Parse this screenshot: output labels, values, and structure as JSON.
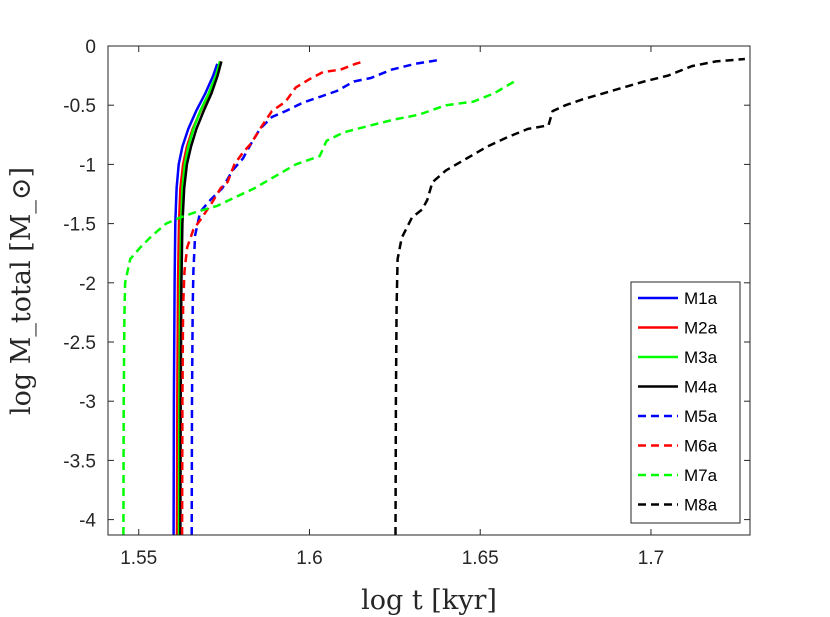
{
  "chart_data": {
    "type": "line",
    "title": "",
    "xlabel": "log t [kyr]",
    "ylabel": "log M_total [M_⊙]",
    "xlim": [
      1.541,
      1.729
    ],
    "ylim": [
      -4.13,
      0
    ],
    "xticks": [
      1.55,
      1.6,
      1.65,
      1.7
    ],
    "xtick_labels": [
      "1.55",
      "1.6",
      "1.65",
      "1.7"
    ],
    "yticks": [
      0,
      -0.5,
      -1,
      -1.5,
      -2,
      -2.5,
      -3,
      -3.5,
      -4
    ],
    "ytick_labels": [
      "0",
      "-0.5",
      "-1",
      "-1.5",
      "-2",
      "-2.5",
      "-3",
      "-3.5",
      "-4"
    ],
    "grid": false,
    "legend_position": "bottom-right",
    "series": [
      {
        "name": "M1a",
        "color": "#0000ff",
        "style": "solid",
        "x": [
          1.5602,
          1.5603,
          1.5605,
          1.5607,
          1.5611,
          1.5617,
          1.5628,
          1.5645,
          1.5668,
          1.5695,
          1.5718,
          1.573
        ],
        "y": [
          -4.13,
          -3.0,
          -2.0,
          -1.5,
          -1.2,
          -1.0,
          -0.85,
          -0.7,
          -0.55,
          -0.4,
          -0.25,
          -0.15
        ]
      },
      {
        "name": "M2a",
        "color": "#ff0000",
        "style": "solid",
        "x": [
          1.5612,
          1.5613,
          1.5615,
          1.5618,
          1.5622,
          1.563,
          1.5641,
          1.5658,
          1.5681,
          1.5707,
          1.5728,
          1.574
        ],
        "y": [
          -4.13,
          -3.0,
          -2.0,
          -1.5,
          -1.2,
          -1.0,
          -0.85,
          -0.7,
          -0.55,
          -0.4,
          -0.25,
          -0.13
        ]
      },
      {
        "name": "M3a",
        "color": "#00ff00",
        "style": "solid",
        "x": [
          1.5618,
          1.5619,
          1.5621,
          1.5624,
          1.5628,
          1.5635,
          1.5645,
          1.566,
          1.568,
          1.5705,
          1.5726,
          1.5738
        ],
        "y": [
          -4.13,
          -3.0,
          -2.0,
          -1.5,
          -1.2,
          -1.0,
          -0.85,
          -0.7,
          -0.55,
          -0.4,
          -0.25,
          -0.13
        ]
      },
      {
        "name": "M4a",
        "color": "#000000",
        "style": "solid",
        "x": [
          1.5622,
          1.5623,
          1.5625,
          1.5628,
          1.5633,
          1.5641,
          1.5653,
          1.5669,
          1.569,
          1.5713,
          1.5731,
          1.5742
        ],
        "y": [
          -4.13,
          -3.0,
          -2.0,
          -1.5,
          -1.2,
          -1.0,
          -0.85,
          -0.7,
          -0.55,
          -0.4,
          -0.25,
          -0.13
        ]
      },
      {
        "name": "M5a",
        "color": "#0000ff",
        "style": "dashed",
        "x": [
          1.5655,
          1.5656,
          1.5658,
          1.566,
          1.5665,
          1.568,
          1.571,
          1.5745,
          1.5775,
          1.5805,
          1.583,
          1.5855,
          1.589,
          1.593,
          1.598,
          1.603,
          1.608,
          1.613,
          1.618,
          1.624,
          1.631,
          1.6375
        ],
        "y": [
          -4.13,
          -3.0,
          -2.2,
          -1.9,
          -1.6,
          -1.4,
          -1.3,
          -1.2,
          -1.05,
          -0.95,
          -0.82,
          -0.7,
          -0.6,
          -0.55,
          -0.48,
          -0.43,
          -0.38,
          -0.3,
          -0.27,
          -0.2,
          -0.15,
          -0.12
        ]
      },
      {
        "name": "M6a",
        "color": "#ff0000",
        "style": "dashed",
        "x": [
          1.5627,
          1.5628,
          1.563,
          1.5634,
          1.5642,
          1.566,
          1.5685,
          1.5715,
          1.574,
          1.576,
          1.578,
          1.5805,
          1.583,
          1.5855,
          1.589,
          1.593,
          1.596,
          1.6,
          1.604,
          1.609,
          1.6135,
          1.616
        ],
        "y": [
          -4.13,
          -3.0,
          -2.2,
          -1.9,
          -1.7,
          -1.55,
          -1.45,
          -1.32,
          -1.2,
          -1.15,
          -1.0,
          -0.9,
          -0.82,
          -0.7,
          -0.55,
          -0.47,
          -0.35,
          -0.28,
          -0.22,
          -0.2,
          -0.15,
          -0.13
        ]
      },
      {
        "name": "M7a",
        "color": "#00ff00",
        "style": "dashed",
        "x": [
          1.5455,
          1.5456,
          1.5458,
          1.546,
          1.5475,
          1.5505,
          1.554,
          1.558,
          1.562,
          1.567,
          1.573,
          1.578,
          1.584,
          1.59,
          1.596,
          1.603,
          1.605,
          1.61,
          1.618,
          1.625,
          1.632,
          1.64,
          1.648,
          1.654,
          1.66
        ],
        "y": [
          -4.13,
          -3.0,
          -2.3,
          -2.0,
          -1.8,
          -1.7,
          -1.6,
          -1.5,
          -1.45,
          -1.4,
          -1.35,
          -1.28,
          -1.2,
          -1.1,
          -1.0,
          -0.93,
          -0.8,
          -0.73,
          -0.67,
          -0.62,
          -0.58,
          -0.5,
          -0.47,
          -0.4,
          -0.3
        ]
      },
      {
        "name": "M8a",
        "color": "#000000",
        "style": "dashed",
        "x": [
          1.6252,
          1.6253,
          1.6255,
          1.6258,
          1.627,
          1.63,
          1.633,
          1.6345,
          1.636,
          1.64,
          1.646,
          1.652,
          1.658,
          1.664,
          1.67,
          1.6712,
          1.675,
          1.68,
          1.686,
          1.692,
          1.698,
          1.705,
          1.712,
          1.719,
          1.7275
        ],
        "y": [
          -4.13,
          -3.0,
          -2.2,
          -1.8,
          -1.62,
          -1.45,
          -1.38,
          -1.3,
          -1.15,
          -1.05,
          -0.95,
          -0.85,
          -0.77,
          -0.7,
          -0.67,
          -0.55,
          -0.5,
          -0.45,
          -0.4,
          -0.35,
          -0.3,
          -0.25,
          -0.17,
          -0.13,
          -0.11
        ]
      }
    ]
  }
}
